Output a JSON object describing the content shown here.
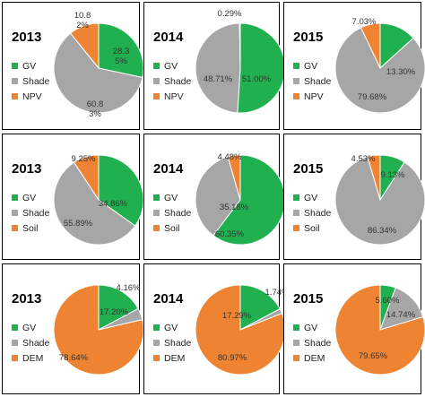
{
  "colors": {
    "GV": "#20b050",
    "Shade": "#a6a6a6",
    "NPV": "#ee8432",
    "Soil": "#ee8432",
    "DEM": "#ee8432"
  },
  "chart_data": [
    {
      "type": "pie",
      "title": "2013",
      "labels": [
        "GV",
        "Shade",
        "NPV"
      ],
      "values": [
        28.35,
        60.83,
        10.82
      ],
      "value_labels": [
        [
          "28.3",
          "5%"
        ],
        [
          "60.8",
          "3%"
        ],
        [
          "10.8",
          "2%"
        ]
      ]
    },
    {
      "type": "pie",
      "title": "2014",
      "labels": [
        "GV",
        "Shade",
        "NPV"
      ],
      "values": [
        51.0,
        48.71,
        0.29
      ],
      "value_labels": [
        [
          "51.00%"
        ],
        [
          "48.71%"
        ],
        [
          "0.29%"
        ]
      ]
    },
    {
      "type": "pie",
      "title": "2015",
      "labels": [
        "GV",
        "Shade",
        "NPV"
      ],
      "values": [
        13.3,
        79.68,
        7.03
      ],
      "value_labels": [
        [
          "13.30%"
        ],
        [
          "79.68%"
        ],
        [
          "7.03%"
        ]
      ]
    },
    {
      "type": "pie",
      "title": "2013",
      "labels": [
        "GV",
        "Shade",
        "Soil"
      ],
      "values": [
        34.86,
        55.89,
        9.25
      ],
      "value_labels": [
        [
          "34.86%"
        ],
        [
          "55.89%"
        ],
        [
          "9.25%"
        ]
      ]
    },
    {
      "type": "pie",
      "title": "2014",
      "labels": [
        "GV",
        "Shade",
        "Soil"
      ],
      "values": [
        60.35,
        35.18,
        4.48
      ],
      "value_labels": [
        [
          "60.35%"
        ],
        [
          "35.18%"
        ],
        [
          "4.48%"
        ]
      ]
    },
    {
      "type": "pie",
      "title": "2015",
      "labels": [
        "GV",
        "Shade",
        "Soil"
      ],
      "values": [
        9.13,
        86.34,
        4.53
      ],
      "value_labels": [
        [
          "9.13%"
        ],
        [
          "86.34%"
        ],
        [
          "4.53%"
        ]
      ]
    },
    {
      "type": "pie",
      "title": "2013",
      "labels": [
        "GV",
        "Shade",
        "DEM"
      ],
      "values": [
        17.2,
        4.16,
        78.64
      ],
      "value_labels": [
        [
          "17.20%"
        ],
        [
          "4.16%"
        ],
        [
          "78.64%"
        ]
      ]
    },
    {
      "type": "pie",
      "title": "2014",
      "labels": [
        "GV",
        "Shade",
        "DEM"
      ],
      "values": [
        17.29,
        1.74,
        80.97
      ],
      "value_labels": [
        [
          "17.29%"
        ],
        [
          "1.74%"
        ],
        [
          "80.97%"
        ]
      ]
    },
    {
      "type": "pie",
      "title": "2015",
      "labels": [
        "GV",
        "Shade",
        "DEM"
      ],
      "values": [
        5.6,
        14.74,
        79.65
      ],
      "value_labels": [
        [
          "5.60%"
        ],
        [
          "14.74%"
        ],
        [
          "79.65%"
        ]
      ]
    }
  ]
}
